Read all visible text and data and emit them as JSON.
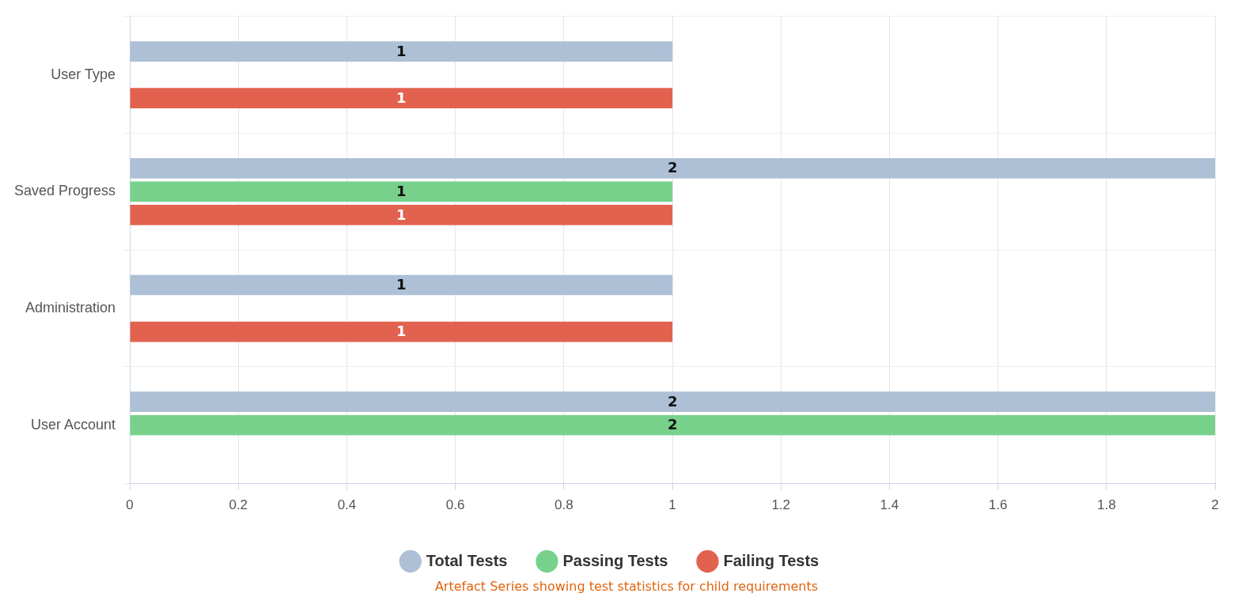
{
  "chart_data": {
    "type": "bar",
    "orientation": "horizontal",
    "categories": [
      "User Type",
      "Saved Progress",
      "Administration",
      "User Account"
    ],
    "series": [
      {
        "name": "Total Tests",
        "color": "#adc0d6",
        "values": [
          1,
          2,
          1,
          2
        ]
      },
      {
        "name": "Passing Tests",
        "color": "#77d18b",
        "values": [
          null,
          1,
          null,
          2
        ]
      },
      {
        "name": "Failing Tests",
        "color": "#e2624f",
        "values": [
          1,
          1,
          1,
          null
        ]
      }
    ],
    "xlim": [
      0,
      2
    ],
    "xticks": [
      0,
      0.2,
      0.4,
      0.6,
      0.8,
      1,
      1.2,
      1.4,
      1.6,
      1.8,
      2
    ],
    "grid": true,
    "legend": "bottom",
    "data_labels": true,
    "annotations": [
      "Artefact Series showing test statistics for child requirements"
    ]
  }
}
